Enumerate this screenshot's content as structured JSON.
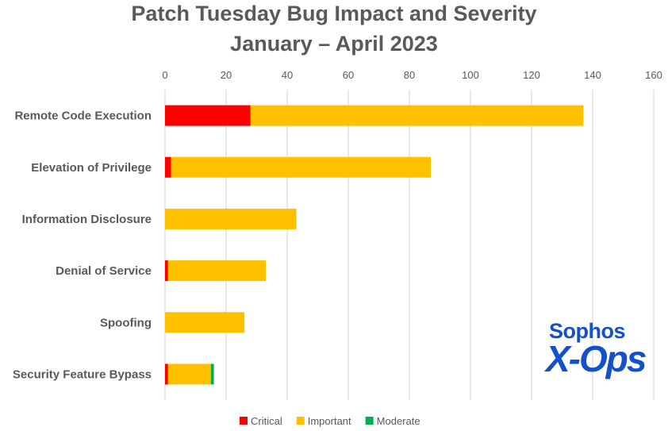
{
  "chart_data": {
    "type": "bar",
    "orientation": "horizontal",
    "stacked": true,
    "title": "Patch Tuesday Bug Impact and Severity",
    "subtitle": "January – April 2023",
    "categories": [
      "Remote Code Execution",
      "Elevation of Privilege",
      "Information Disclosure",
      "Denial of Service",
      "Spoofing",
      "Security Feature Bypass"
    ],
    "series": [
      {
        "name": "Critical",
        "color": "#ff0000",
        "values": [
          28,
          2,
          0,
          1,
          0,
          1
        ]
      },
      {
        "name": "Important",
        "color": "#ffc000",
        "values": [
          109,
          85,
          43,
          32,
          26,
          14
        ]
      },
      {
        "name": "Moderate",
        "color": "#00b050",
        "values": [
          0,
          0,
          0,
          0,
          0,
          1
        ]
      }
    ],
    "xlim": [
      0,
      160
    ],
    "xticks": [
      0,
      20,
      40,
      60,
      80,
      100,
      120,
      140,
      160
    ],
    "grid": true,
    "legend": "bottom"
  },
  "logo": {
    "line1": "Sophos",
    "line2": "X-Ops"
  }
}
